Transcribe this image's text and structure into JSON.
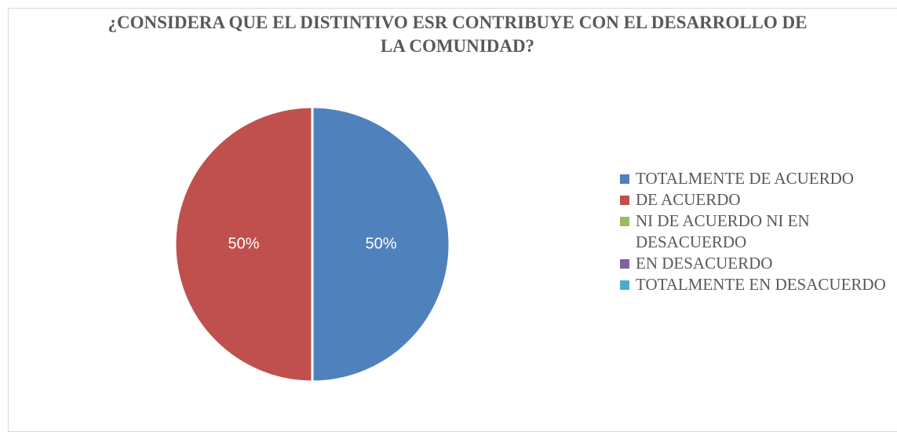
{
  "chart_data": {
    "type": "pie",
    "title": "¿CONSIDERA QUE EL DISTINTIVO ESR CONTRIBUYE CON EL DESARROLLO DE LA COMUNIDAD?",
    "categories": [
      "TOTALMENTE DE ACUERDO",
      "DE ACUERDO",
      "NI DE ACUERDO NI EN DESACUERDO",
      "EN DESACUERDO",
      "TOTALMENTE EN DESACUERDO"
    ],
    "values": [
      50,
      50,
      0,
      0,
      0
    ],
    "value_labels": [
      "50%",
      "50%",
      null,
      null,
      null
    ],
    "colors": [
      "#4f81bd",
      "#c0504d",
      "#9bbb59",
      "#8064a2",
      "#4bacc6"
    ],
    "legend": "right"
  }
}
